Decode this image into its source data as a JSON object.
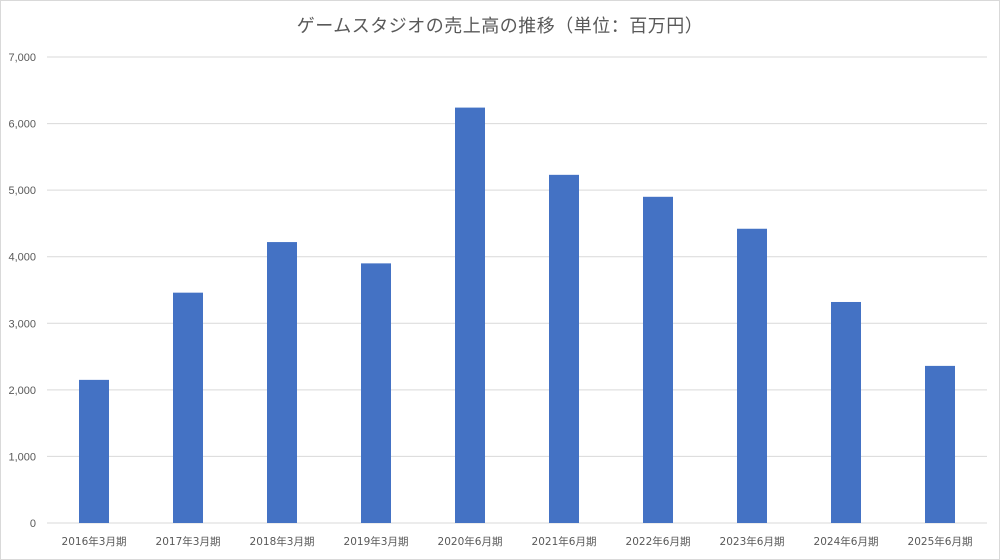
{
  "chart_data": {
    "type": "bar",
    "title": "ゲームスタジオの売上高の推移（単位：百万円）",
    "categories": [
      "2016年3月期",
      "2017年3月期",
      "2018年3月期",
      "2019年3月期",
      "2020年6月期",
      "2021年6月期",
      "2022年6月期",
      "2023年6月期",
      "2024年6月期",
      "2025年6月期"
    ],
    "values": [
      2150,
      3460,
      4220,
      3900,
      6240,
      5230,
      4900,
      4420,
      3320,
      2360
    ],
    "ylim": [
      0,
      7000
    ],
    "yticks": [
      0,
      1000,
      2000,
      3000,
      4000,
      5000,
      6000,
      7000
    ],
    "ytick_labels": [
      "0",
      "1,000",
      "2,000",
      "3,000",
      "4,000",
      "5,000",
      "6,000",
      "7,000"
    ],
    "grid": true,
    "bar_color": "#4472C4",
    "gridline_color": "#d9d9d9",
    "xlabel": "",
    "ylabel": ""
  }
}
